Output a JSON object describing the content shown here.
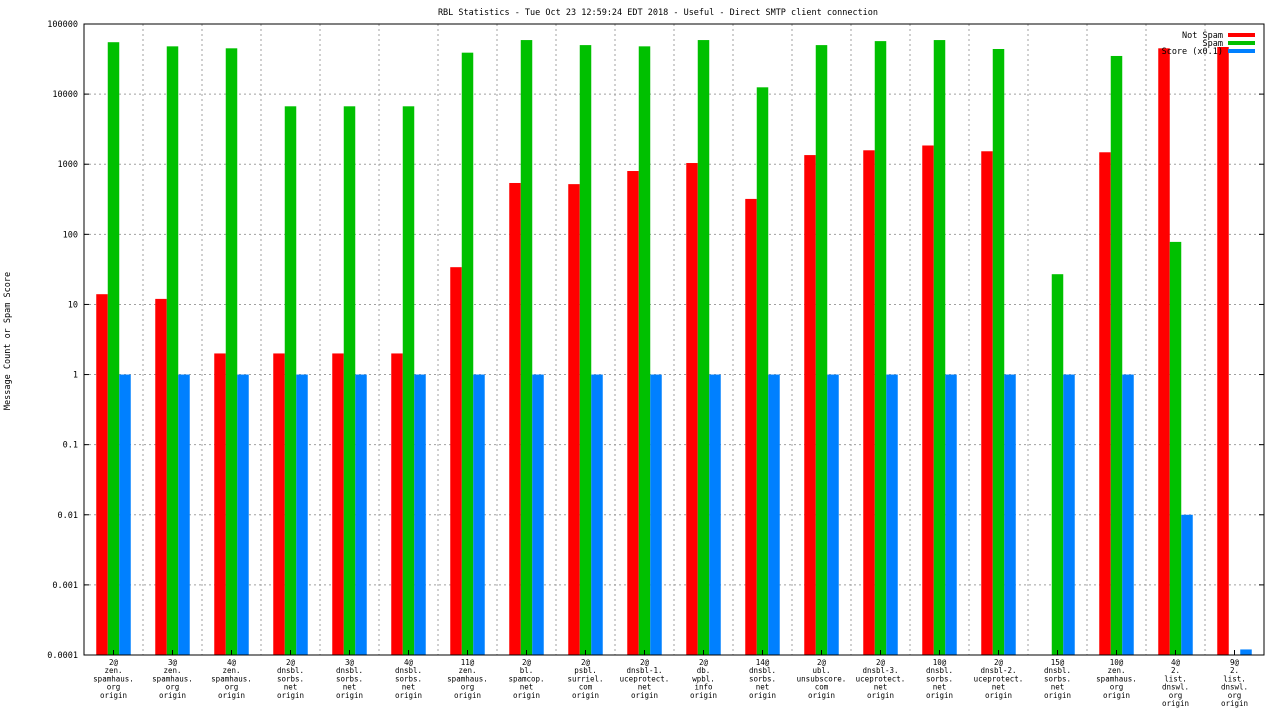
{
  "chart_data": {
    "type": "bar",
    "title": "RBL Statistics - Tue Oct 23 12:59:24 EDT 2018 - Useful - Direct SMTP client connection",
    "ylabel": "Message Count or Spam Score",
    "xlabel": "",
    "y_scale": "log",
    "ylim": [
      0.0001,
      100000
    ],
    "y_ticks": [
      {
        "value": 0.0001,
        "label": "0.0001"
      },
      {
        "value": 0.001,
        "label": "0.001"
      },
      {
        "value": 0.01,
        "label": "0.01"
      },
      {
        "value": 0.1,
        "label": "0.1"
      },
      {
        "value": 1,
        "label": "1"
      },
      {
        "value": 10,
        "label": "10"
      },
      {
        "value": 100,
        "label": "100"
      },
      {
        "value": 1000,
        "label": "1000"
      },
      {
        "value": 10000,
        "label": "10000"
      },
      {
        "value": 100000,
        "label": "100000"
      }
    ],
    "grid": true,
    "legend_position": "top-right",
    "categories": [
      [
        "2@",
        "zen.",
        "spamhaus.",
        "org",
        "origin"
      ],
      [
        "3@",
        "zen.",
        "spamhaus.",
        "org",
        "origin"
      ],
      [
        "4@",
        "zen.",
        "spamhaus.",
        "org",
        "origin"
      ],
      [
        "2@",
        "dnsbl.",
        "sorbs.",
        "net",
        "origin"
      ],
      [
        "3@",
        "dnsbl.",
        "sorbs.",
        "net",
        "origin"
      ],
      [
        "4@",
        "dnsbl.",
        "sorbs.",
        "net",
        "origin"
      ],
      [
        "11@",
        "zen.",
        "spamhaus.",
        "org",
        "origin"
      ],
      [
        "2@",
        "bl.",
        "spamcop.",
        "net",
        "origin"
      ],
      [
        "2@",
        "psbl.",
        "surriel.",
        "com",
        "origin"
      ],
      [
        "2@",
        "dnsbl-1.",
        "uceprotect.",
        "net",
        "origin"
      ],
      [
        "2@",
        "db.",
        "wpbl.",
        "info",
        "origin"
      ],
      [
        "14@",
        "dnsbl.",
        "sorbs.",
        "net",
        "origin"
      ],
      [
        "2@",
        "ubl.",
        "unsubscore.",
        "com",
        "origin"
      ],
      [
        "2@",
        "dnsbl-3.",
        "uceprotect.",
        "net",
        "origin"
      ],
      [
        "10@",
        "dnsbl.",
        "sorbs.",
        "net",
        "origin"
      ],
      [
        "2@",
        "dnsbl-2.",
        "uceprotect.",
        "net",
        "origin"
      ],
      [
        "15@",
        "dnsbl.",
        "sorbs.",
        "net",
        "origin"
      ],
      [
        "10@",
        "zen.",
        "spamhaus.",
        "org",
        "origin"
      ],
      [
        "4@",
        "2.",
        "list.",
        "dnswl.",
        "org",
        "origin"
      ],
      [
        "9@",
        "2.",
        "list.",
        "dnswl.",
        "org",
        "origin"
      ]
    ],
    "series": [
      {
        "name": "Not Spam",
        "color": "#ff0000",
        "values": [
          14,
          12,
          2,
          2,
          2,
          2,
          34,
          540,
          520,
          800,
          1040,
          320,
          1350,
          1580,
          1850,
          1530,
          null,
          1480,
          45000,
          47000
        ]
      },
      {
        "name": "Spam",
        "color": "#00c000",
        "values": [
          55000,
          48000,
          45000,
          6700,
          6700,
          6700,
          39000,
          59000,
          50000,
          48000,
          59000,
          12500,
          50000,
          57000,
          59000,
          44000,
          27,
          35000,
          78,
          null
        ]
      },
      {
        "name": "Score (x0.1)",
        "color": "#0080ff",
        "values": [
          1,
          1,
          1,
          1,
          1,
          1,
          1,
          1,
          1,
          1,
          1,
          1,
          1,
          1,
          1,
          1,
          1,
          1,
          0.01,
          0.00012
        ]
      }
    ]
  }
}
